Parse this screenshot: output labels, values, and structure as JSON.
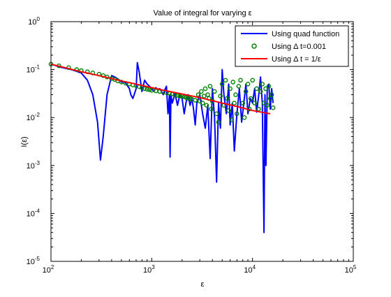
{
  "chart_data": {
    "type": "line",
    "title": "Value of integral for varying ε",
    "xlabel": "ε",
    "ylabel": "I(ε)",
    "xscale": "log",
    "yscale": "log",
    "xlim": [
      100,
      100000
    ],
    "ylim": [
      1e-05,
      1
    ],
    "grid": false,
    "legend_position": "top-right",
    "x_ticks": [
      {
        "value": 100,
        "base": "10",
        "exp": "2"
      },
      {
        "value": 1000,
        "base": "10",
        "exp": "3"
      },
      {
        "value": 10000,
        "base": "10",
        "exp": "4"
      },
      {
        "value": 100000,
        "base": "10",
        "exp": "5"
      }
    ],
    "y_ticks": [
      {
        "value": 1,
        "base": "10",
        "exp": "0"
      },
      {
        "value": 0.1,
        "base": "10",
        "exp": "-1"
      },
      {
        "value": 0.01,
        "base": "10",
        "exp": "-2"
      },
      {
        "value": 0.001,
        "base": "10",
        "exp": "-3"
      },
      {
        "value": 0.0001,
        "base": "10",
        "exp": "-4"
      },
      {
        "value": 1e-05,
        "base": "10",
        "exp": "-5"
      }
    ],
    "series": [
      {
        "name": "Using quad function",
        "style": "line",
        "color": "#0000ff",
        "x": [
          100,
          130,
          160,
          200,
          230,
          260,
          290,
          310,
          330,
          360,
          400,
          430,
          470,
          500,
          550,
          600,
          620,
          650,
          700,
          720,
          750,
          800,
          850,
          900,
          950,
          1000,
          1050,
          1100,
          1150,
          1200,
          1250,
          1300,
          1350,
          1400,
          1450,
          1500,
          1520,
          1550,
          1600,
          1650,
          1700,
          1800,
          1900,
          2000,
          2100,
          2200,
          2300,
          2400,
          2500,
          2600,
          2700,
          2800,
          3000,
          3200,
          3400,
          3600,
          3800,
          4000,
          4200,
          4400,
          4600,
          4800,
          5000,
          5200,
          5500,
          5800,
          6000,
          6300,
          6600,
          7000,
          7400,
          7800,
          8200,
          8600,
          9000,
          9500,
          10000,
          10500,
          11000,
          11500,
          12000,
          12500,
          13000,
          13300,
          13600,
          14000,
          14500,
          15000,
          15500,
          16000
        ],
        "y": [
          0.13,
          0.11,
          0.1,
          0.085,
          0.06,
          0.03,
          0.008,
          0.0013,
          0.004,
          0.03,
          0.075,
          0.07,
          0.062,
          0.055,
          0.053,
          0.04,
          0.03,
          0.025,
          0.04,
          0.14,
          0.09,
          0.035,
          0.06,
          0.05,
          0.045,
          0.04,
          0.035,
          0.042,
          0.038,
          0.04,
          0.035,
          0.03,
          0.038,
          0.045,
          0.012,
          0.03,
          0.0015,
          0.03,
          0.02,
          0.025,
          0.032,
          0.018,
          0.03,
          0.025,
          0.012,
          0.022,
          0.03,
          0.018,
          0.025,
          0.015,
          0.007,
          0.02,
          0.03,
          0.012,
          0.006,
          0.018,
          0.0014,
          0.04,
          0.01,
          0.00045,
          0.02,
          0.006,
          0.1,
          0.03,
          0.012,
          0.05,
          0.007,
          0.02,
          0.002,
          0.012,
          0.04,
          0.008,
          0.02,
          0.05,
          0.012,
          0.025,
          0.02,
          0.04,
          0.013,
          0.028,
          0.07,
          0.02,
          4e-05,
          0.03,
          0.001,
          0.04,
          0.05,
          0.015,
          0.04,
          0.02
        ]
      },
      {
        "name": "Using Δ t=0.001",
        "style": "markers",
        "color": "#008000",
        "x": [
          100,
          120,
          150,
          180,
          200,
          230,
          260,
          300,
          330,
          360,
          400,
          430,
          460,
          500,
          550,
          600,
          650,
          700,
          750,
          800,
          850,
          900,
          950,
          1000,
          1100,
          1200,
          1300,
          1400,
          1500,
          1600,
          1700,
          1800,
          1900,
          2000,
          2100,
          2200,
          2300,
          2400,
          2500,
          2700,
          2900,
          3000,
          3100,
          3200,
          3300,
          3400,
          3500,
          3600,
          3700,
          3800,
          3900,
          4000,
          4200,
          4400,
          4600,
          4800,
          5000,
          5200,
          5400,
          5600,
          5800,
          6000,
          6200,
          6400,
          6600,
          6800,
          7000,
          7300,
          7600,
          8000,
          8300,
          8600,
          9000,
          9300,
          9600,
          10000,
          10500,
          11000,
          11500,
          12000,
          12500,
          13000,
          13500,
          14000,
          14500,
          15000,
          15500,
          16000
        ],
        "y": [
          0.13,
          0.12,
          0.11,
          0.1,
          0.095,
          0.09,
          0.085,
          0.08,
          0.075,
          0.07,
          0.065,
          0.062,
          0.058,
          0.055,
          0.052,
          0.05,
          0.048,
          0.046,
          0.044,
          0.042,
          0.04,
          0.039,
          0.038,
          0.037,
          0.036,
          0.035,
          0.034,
          0.033,
          0.032,
          0.031,
          0.03,
          0.029,
          0.028,
          0.028,
          0.027,
          0.026,
          0.025,
          0.025,
          0.024,
          0.023,
          0.03,
          0.022,
          0.035,
          0.02,
          0.028,
          0.04,
          0.018,
          0.03,
          0.025,
          0.045,
          0.015,
          0.022,
          0.035,
          0.012,
          0.008,
          0.028,
          0.05,
          0.018,
          0.06,
          0.025,
          0.014,
          0.04,
          0.009,
          0.055,
          0.02,
          0.03,
          0.012,
          0.045,
          0.06,
          0.02,
          0.01,
          0.035,
          0.05,
          0.015,
          0.025,
          0.06,
          0.02,
          0.04,
          0.015,
          0.035,
          0.05,
          0.02,
          0.04,
          0.018,
          0.045,
          0.025,
          0.03,
          0.016
        ]
      },
      {
        "name": "Using Δ t = 1/ε",
        "style": "line",
        "color": "#ff0000",
        "x": [
          100,
          200,
          300,
          500,
          700,
          1000,
          1500,
          2000,
          3000,
          5000,
          7000,
          10000,
          15000
        ],
        "y": [
          0.13,
          0.09,
          0.075,
          0.058,
          0.05,
          0.042,
          0.035,
          0.031,
          0.026,
          0.02,
          0.017,
          0.014,
          0.012
        ]
      }
    ]
  }
}
